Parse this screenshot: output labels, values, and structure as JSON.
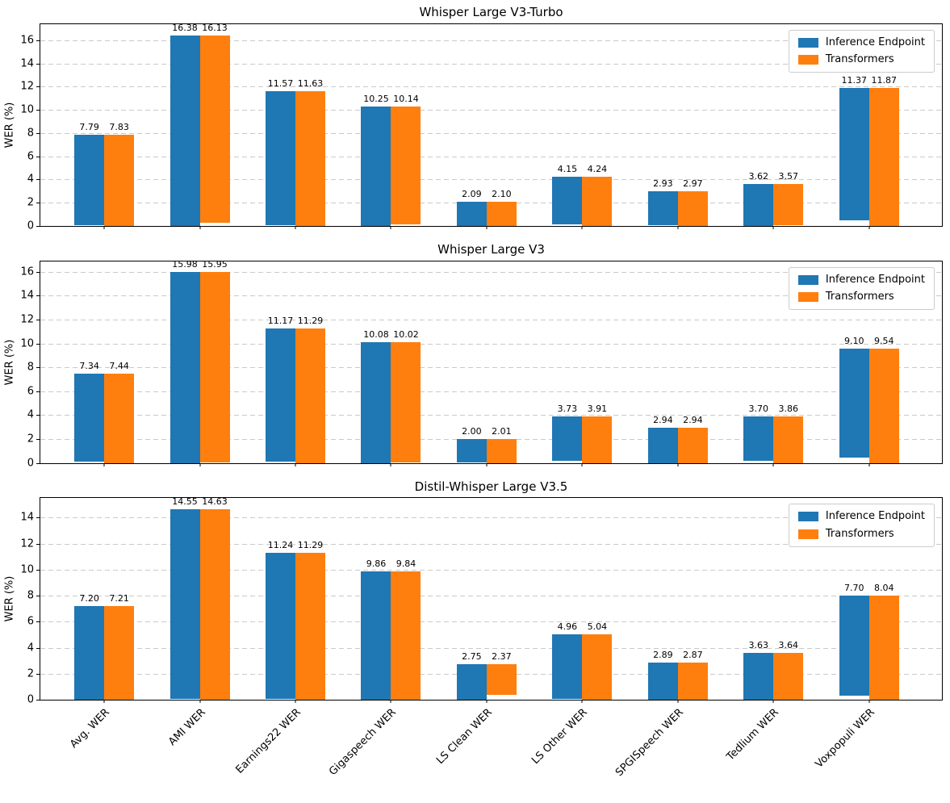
{
  "figure": {
    "shared_ylabel": "WER (%)",
    "series_names": [
      "Inference Endpoint",
      "Transformers"
    ],
    "colors": {
      "inference_endpoint": "#1f77b4",
      "transformers": "#ff7f0e",
      "grid": "#c9c9c9",
      "spine": "#000000",
      "background": "#ffffff"
    }
  },
  "chart_data": [
    {
      "type": "bar",
      "title": "Whisper Large V3-Turbo",
      "ylabel": "WER (%)",
      "categories": [
        "Avg. WER",
        "AMI WER",
        "Earnings22 WER",
        "Gigaspeech WER",
        "LS Clean WER",
        "LS Other WER",
        "SPGISpeech WER",
        "Tedlium WER",
        "Voxpopuli WER"
      ],
      "series": [
        {
          "name": "Inference Endpoint",
          "color": "#1f77b4",
          "values": [
            7.79,
            16.38,
            11.57,
            10.25,
            2.09,
            4.15,
            2.93,
            3.62,
            11.37
          ]
        },
        {
          "name": "Transformers",
          "color": "#ff7f0e",
          "values": [
            7.83,
            16.13,
            11.63,
            10.14,
            2.1,
            4.24,
            2.97,
            3.57,
            11.87
          ]
        }
      ],
      "ylim": [
        0,
        17.4
      ],
      "yticks": [
        0,
        2,
        4,
        6,
        8,
        10,
        12,
        14,
        16
      ],
      "grid": "horizontal-dashed",
      "legend_position": "upper-right",
      "show_x_labels": false
    },
    {
      "type": "bar",
      "title": "Whisper Large V3",
      "ylabel": "WER (%)",
      "categories": [
        "Avg. WER",
        "AMI WER",
        "Earnings22 WER",
        "Gigaspeech WER",
        "LS Clean WER",
        "LS Other WER",
        "SPGISpeech WER",
        "Tedlium WER",
        "Voxpopuli WER"
      ],
      "series": [
        {
          "name": "Inference Endpoint",
          "color": "#1f77b4",
          "values": [
            7.34,
            15.98,
            11.17,
            10.08,
            2.0,
            3.73,
            2.94,
            3.7,
            9.1
          ]
        },
        {
          "name": "Transformers",
          "color": "#ff7f0e",
          "values": [
            7.44,
            15.95,
            11.29,
            10.02,
            2.01,
            3.91,
            2.94,
            3.86,
            9.54
          ]
        }
      ],
      "ylim": [
        0,
        16.9
      ],
      "yticks": [
        0,
        2,
        4,
        6,
        8,
        10,
        12,
        14,
        16
      ],
      "grid": "horizontal-dashed",
      "legend_position": "upper-right",
      "show_x_labels": false
    },
    {
      "type": "bar",
      "title": "Distil-Whisper Large V3.5",
      "ylabel": "WER (%)",
      "categories": [
        "Avg. WER",
        "AMI WER",
        "Earnings22 WER",
        "Gigaspeech WER",
        "LS Clean WER",
        "LS Other WER",
        "SPGISpeech WER",
        "Tedlium WER",
        "Voxpopuli WER"
      ],
      "series": [
        {
          "name": "Inference Endpoint",
          "color": "#1f77b4",
          "values": [
            7.2,
            14.55,
            11.24,
            9.86,
            2.75,
            4.96,
            2.89,
            3.63,
            7.7
          ]
        },
        {
          "name": "Transformers",
          "color": "#ff7f0e",
          "values": [
            7.21,
            14.63,
            11.29,
            9.84,
            2.37,
            5.04,
            2.87,
            3.64,
            8.04
          ]
        }
      ],
      "ylim": [
        0,
        15.5
      ],
      "yticks": [
        0,
        2,
        4,
        6,
        8,
        10,
        12,
        14
      ],
      "grid": "horizontal-dashed",
      "legend_position": "upper-right",
      "show_x_labels": true
    }
  ]
}
